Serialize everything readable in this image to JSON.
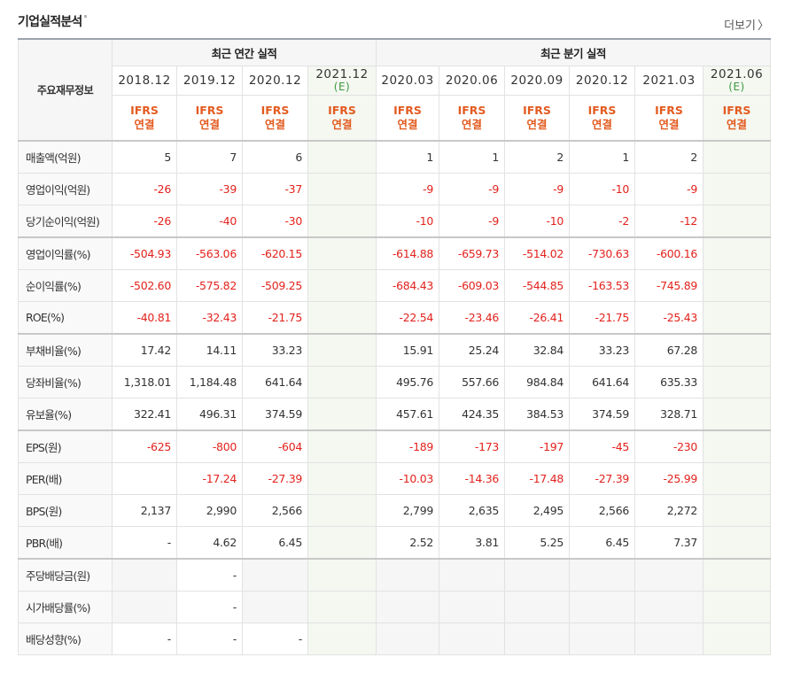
{
  "section_title": "기업실적분석",
  "more_link": "더보기",
  "header": {
    "row_label": "주요재무정보",
    "annual_group": "최근 연간 실적",
    "quarter_group": "최근 분기 실적"
  },
  "periods": [
    {
      "label": "2018.12",
      "est": "",
      "ifrs1": "IFRS",
      "ifrs2": "연결"
    },
    {
      "label": "2019.12",
      "est": "",
      "ifrs1": "IFRS",
      "ifrs2": "연결"
    },
    {
      "label": "2020.12",
      "est": "",
      "ifrs1": "IFRS",
      "ifrs2": "연결"
    },
    {
      "label": "2021.12",
      "est": "(E)",
      "ifrs1": "IFRS",
      "ifrs2": "연결"
    },
    {
      "label": "2020.03",
      "est": "",
      "ifrs1": "IFRS",
      "ifrs2": "연결"
    },
    {
      "label": "2020.06",
      "est": "",
      "ifrs1": "IFRS",
      "ifrs2": "연결"
    },
    {
      "label": "2020.09",
      "est": "",
      "ifrs1": "IFRS",
      "ifrs2": "연결"
    },
    {
      "label": "2020.12",
      "est": "",
      "ifrs1": "IFRS",
      "ifrs2": "연결"
    },
    {
      "label": "2021.03",
      "est": "",
      "ifrs1": "IFRS",
      "ifrs2": "연결"
    },
    {
      "label": "2021.06",
      "est": "(E)",
      "ifrs1": "IFRS",
      "ifrs2": "연결"
    }
  ],
  "rows": [
    {
      "label": "매출액(억원)",
      "values": [
        "5",
        "7",
        "6",
        "",
        "1",
        "1",
        "2",
        "1",
        "2",
        ""
      ]
    },
    {
      "label": "영업이익(억원)",
      "values": [
        "-26",
        "-39",
        "-37",
        "",
        "-9",
        "-9",
        "-9",
        "-10",
        "-9",
        ""
      ]
    },
    {
      "label": "당기순이익(억원)",
      "values": [
        "-26",
        "-40",
        "-30",
        "",
        "-10",
        "-9",
        "-10",
        "-2",
        "-12",
        ""
      ]
    },
    {
      "label": "영업이익률(%)",
      "values": [
        "-504.93",
        "-563.06",
        "-620.15",
        "",
        "-614.88",
        "-659.73",
        "-514.02",
        "-730.63",
        "-600.16",
        ""
      ]
    },
    {
      "label": "순이익률(%)",
      "values": [
        "-502.60",
        "-575.82",
        "-509.25",
        "",
        "-684.43",
        "-609.03",
        "-544.85",
        "-163.53",
        "-745.89",
        ""
      ]
    },
    {
      "label": "ROE(%)",
      "values": [
        "-40.81",
        "-32.43",
        "-21.75",
        "",
        "-22.54",
        "-23.46",
        "-26.41",
        "-21.75",
        "-25.43",
        ""
      ]
    },
    {
      "label": "부채비율(%)",
      "values": [
        "17.42",
        "14.11",
        "33.23",
        "",
        "15.91",
        "25.24",
        "32.84",
        "33.23",
        "67.28",
        ""
      ]
    },
    {
      "label": "당좌비율(%)",
      "values": [
        "1,318.01",
        "1,184.48",
        "641.64",
        "",
        "495.76",
        "557.66",
        "984.84",
        "641.64",
        "635.33",
        ""
      ]
    },
    {
      "label": "유보율(%)",
      "values": [
        "322.41",
        "496.31",
        "374.59",
        "",
        "457.61",
        "424.35",
        "384.53",
        "374.59",
        "328.71",
        ""
      ]
    },
    {
      "label": "EPS(원)",
      "values": [
        "-625",
        "-800",
        "-604",
        "",
        "-189",
        "-173",
        "-197",
        "-45",
        "-230",
        ""
      ]
    },
    {
      "label": "PER(배)",
      "values": [
        "",
        "-17.24",
        "-27.39",
        "",
        "-10.03",
        "-14.36",
        "-17.48",
        "-27.39",
        "-25.99",
        ""
      ]
    },
    {
      "label": "BPS(원)",
      "values": [
        "2,137",
        "2,990",
        "2,566",
        "",
        "2,799",
        "2,635",
        "2,495",
        "2,566",
        "2,272",
        ""
      ]
    },
    {
      "label": "PBR(배)",
      "values": [
        "-",
        "4.62",
        "6.45",
        "",
        "2.52",
        "3.81",
        "5.25",
        "6.45",
        "7.37",
        ""
      ]
    },
    {
      "label": "주당배당금(원)",
      "values": [
        "",
        "-",
        "",
        "",
        "",
        "",
        "",
        "",
        "",
        ""
      ]
    },
    {
      "label": "시가배당률(%)",
      "values": [
        "",
        "-",
        "",
        "",
        "",
        "",
        "",
        "",
        "",
        ""
      ]
    },
    {
      "label": "배당성향(%)",
      "values": [
        "-",
        "-",
        "-",
        "",
        "",
        "",
        "",
        "",
        "",
        ""
      ]
    }
  ],
  "colors": {
    "negative": "#e3221d",
    "ifrs": "#e35b20",
    "estimate": "#3f9a3f",
    "estimate_bg": "#f4f8f1"
  }
}
